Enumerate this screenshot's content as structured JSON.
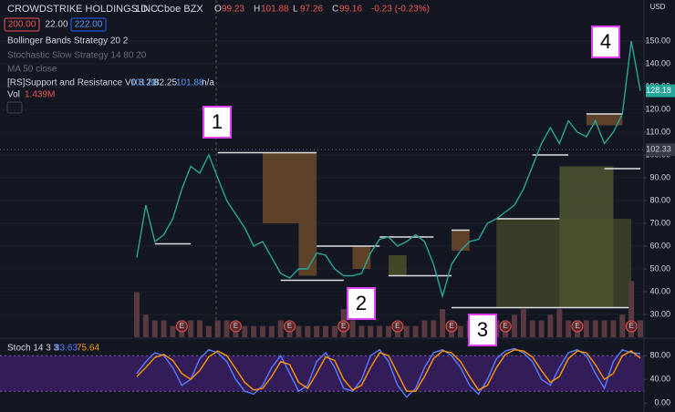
{
  "chart_data": [
    {
      "type": "line",
      "title": "CROWDSTRIKE HOLDINGS INC",
      "interval": "1D",
      "exchange": "Cboe BZX",
      "ohlc": [
        {
          "label": "O",
          "value": 99.23
        },
        {
          "label": "H",
          "value": 101.88
        },
        {
          "label": "L",
          "value": 97.26
        },
        {
          "label": "C",
          "value": 99.16
        }
      ],
      "change": "-0.23 (-0.23%)",
      "buttons": [
        "200.00",
        "22.00",
        "222.00"
      ],
      "indicators": [
        "Bollinger Bands Strategy 20 2",
        "Stochastic Slow Strategy 14 80 20",
        "MA 50 close"
      ],
      "sr_name": "[RS]Support and Resistance V0 8 21",
      "sr_values": [
        "101.88",
        "82.25",
        "101.88",
        "n/a"
      ],
      "vol_name": "Vol",
      "vol_value": "1.439M",
      "currency": "USD",
      "series": [
        {
          "color": "#26a69a",
          "values": [
            55,
            78,
            62,
            65,
            72,
            85,
            95,
            92,
            100,
            90,
            80,
            74,
            68,
            60,
            62,
            55,
            48,
            46,
            50,
            50,
            57,
            56,
            50,
            47,
            47,
            48,
            57,
            63,
            64,
            60,
            62,
            65,
            62,
            52,
            38,
            52,
            58,
            62,
            63,
            70,
            72,
            75,
            78,
            85,
            95,
            105,
            112,
            105,
            115,
            110,
            108,
            115,
            105,
            110,
            118,
            150,
            128.18
          ]
        },
        {
          "color": "#5a3a40",
          "axis": "y2",
          "values": [
            8,
            4,
            3,
            3,
            2,
            3,
            3,
            3,
            2,
            3,
            3,
            2,
            2,
            2,
            2,
            2,
            3,
            2,
            2,
            2,
            2,
            2,
            2,
            5,
            3,
            2,
            2,
            2,
            2,
            2,
            2,
            2,
            3,
            3,
            5,
            3,
            2,
            3,
            3,
            3,
            3,
            3,
            4,
            5,
            3,
            3,
            4,
            5,
            3,
            3,
            3,
            3,
            3,
            3,
            4,
            10,
            3
          ]
        }
      ],
      "ylim": [
        20,
        168
      ],
      "yticks": [
        {
          "value": 30,
          "label": "30.00"
        },
        {
          "value": 40,
          "label": "40.00"
        },
        {
          "value": 50,
          "label": "50.00"
        },
        {
          "value": 60,
          "label": "60.00"
        },
        {
          "value": 70,
          "label": "70.00"
        },
        {
          "value": 80,
          "label": "80.00"
        },
        {
          "value": 90,
          "label": "90.00"
        },
        {
          "value": 100,
          "label": "100.00"
        },
        {
          "value": 110,
          "label": "110.00"
        },
        {
          "value": 120,
          "label": "120.00"
        },
        {
          "value": 130,
          "label": "130.00"
        },
        {
          "value": 140,
          "label": "140.00"
        },
        {
          "value": 150,
          "label": "150.00"
        }
      ],
      "y2lim": [
        0,
        60
      ],
      "grid": true,
      "price_line": 102.33,
      "zones": [
        {
          "start": 14,
          "end": 20,
          "top": 101,
          "bottom": 70,
          "color": "#6b4a2a"
        },
        {
          "start": 18,
          "end": 20,
          "top": 70,
          "bottom": 47,
          "color": "#6b4a2a"
        },
        {
          "start": 24,
          "end": 26,
          "top": 60,
          "bottom": 50,
          "color": "#6b4a2a"
        },
        {
          "start": 28,
          "end": 30,
          "top": 56,
          "bottom": 47,
          "color": "#4d4f2a"
        },
        {
          "start": 35,
          "end": 37,
          "top": 67,
          "bottom": 58,
          "color": "#6b4a2a"
        },
        {
          "start": 40,
          "end": 55,
          "top": 72,
          "bottom": 33,
          "color": "#3f4428"
        },
        {
          "start": 47,
          "end": 53,
          "top": 95,
          "bottom": 33,
          "color": "#4d5530"
        },
        {
          "start": 50,
          "end": 54,
          "top": 118,
          "bottom": 113,
          "color": "#6b4a2a"
        }
      ],
      "levels": [
        {
          "start": 2,
          "end": 6,
          "value": 61
        },
        {
          "start": 9,
          "end": 20,
          "value": 101
        },
        {
          "start": 16,
          "end": 23,
          "value": 45
        },
        {
          "start": 20,
          "end": 27,
          "value": 60
        },
        {
          "start": 28,
          "end": 35,
          "value": 47
        },
        {
          "start": 27,
          "end": 33,
          "value": 64
        },
        {
          "start": 35,
          "end": 37,
          "value": 67
        },
        {
          "start": 35,
          "end": 55,
          "value": 33
        },
        {
          "start": 40,
          "end": 47,
          "value": 72
        },
        {
          "start": 44,
          "end": 48,
          "value": 100
        },
        {
          "start": 50,
          "end": 54,
          "value": 118
        },
        {
          "start": 52,
          "end": 56,
          "value": 94
        }
      ],
      "events": [
        {
          "index": 5,
          "label": "E"
        },
        {
          "index": 11,
          "label": "E"
        },
        {
          "index": 17,
          "label": "E"
        },
        {
          "index": 23,
          "label": "E"
        },
        {
          "index": 29,
          "label": "E"
        },
        {
          "index": 35,
          "label": "E"
        },
        {
          "index": 41,
          "label": "E"
        },
        {
          "index": 49,
          "label": "E"
        },
        {
          "index": 55,
          "label": "E"
        }
      ],
      "annotations": [
        "1",
        "2",
        "3",
        "4"
      ]
    },
    {
      "type": "line",
      "title": "Stoch 14 3 3",
      "series": [
        {
          "color": "#5b7cff",
          "values": [
            50,
            70,
            85,
            80,
            60,
            30,
            40,
            75,
            90,
            85,
            70,
            40,
            20,
            15,
            30,
            60,
            80,
            50,
            20,
            30,
            70,
            85,
            60,
            25,
            20,
            40,
            80,
            90,
            70,
            30,
            10,
            25,
            60,
            85,
            90,
            80,
            60,
            30,
            15,
            40,
            75,
            88,
            92,
            85,
            70,
            40,
            30,
            60,
            85,
            90,
            80,
            50,
            25,
            70,
            90,
            85,
            83.63
          ]
        },
        {
          "color": "#ff9800",
          "values": [
            45,
            60,
            77,
            82,
            72,
            50,
            40,
            55,
            78,
            88,
            80,
            58,
            35,
            22,
            25,
            45,
            70,
            65,
            35,
            25,
            50,
            78,
            72,
            40,
            22,
            30,
            60,
            85,
            80,
            50,
            20,
            20,
            45,
            75,
            88,
            85,
            70,
            45,
            22,
            30,
            60,
            82,
            90,
            88,
            78,
            55,
            35,
            45,
            75,
            88,
            85,
            65,
            40,
            50,
            80,
            88,
            75.64
          ]
        }
      ],
      "ylim": [
        -15,
        108
      ],
      "yticks": [
        {
          "value": 0,
          "label": "0.00"
        },
        {
          "value": 40,
          "label": "40.00"
        },
        {
          "value": 80,
          "label": "80.00"
        }
      ],
      "band": [
        20,
        80
      ],
      "band_color": "#3b1f66"
    }
  ]
}
